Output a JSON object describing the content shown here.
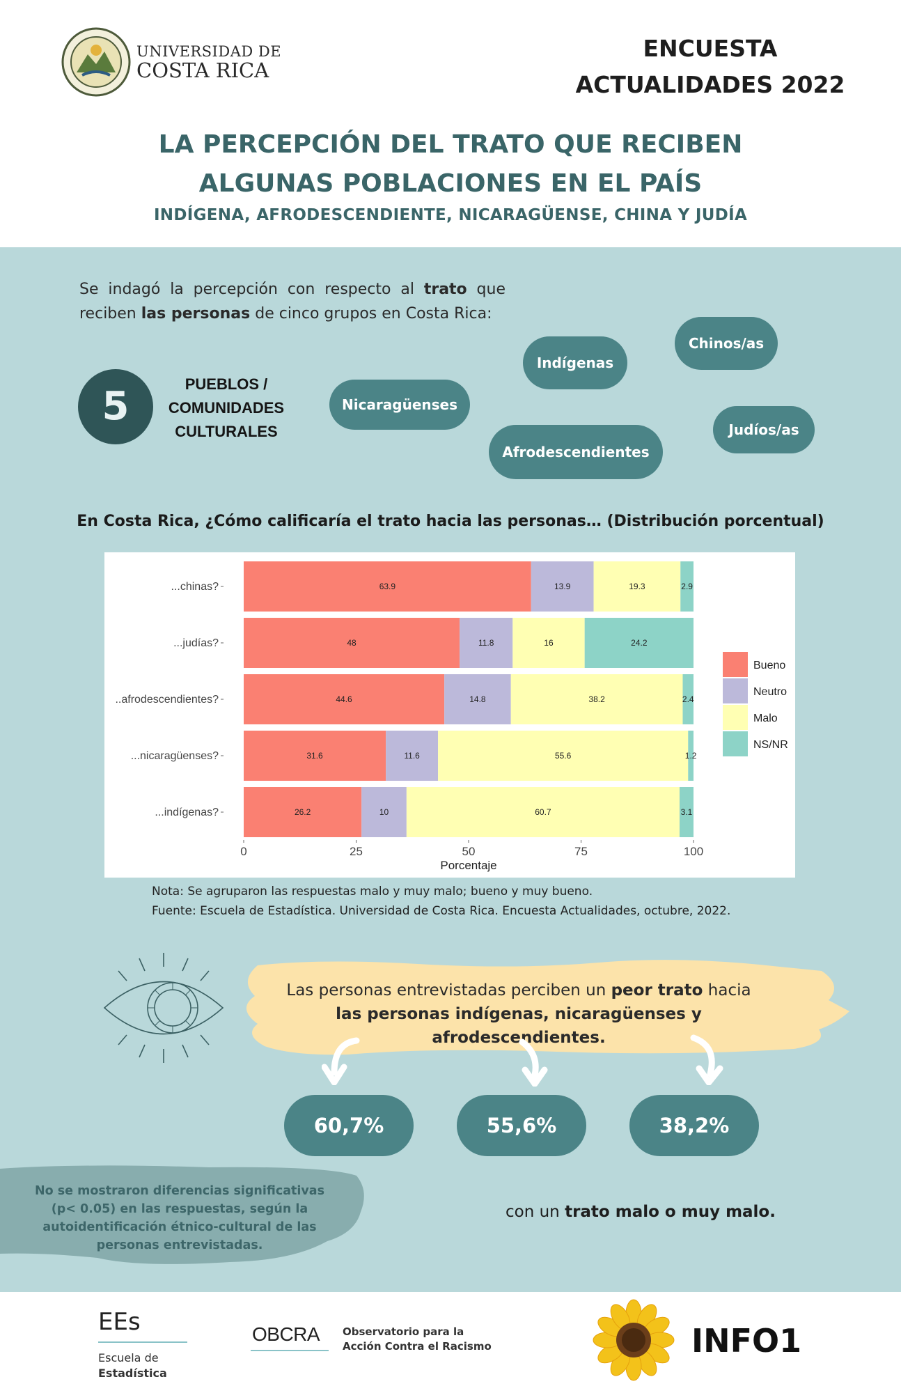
{
  "header": {
    "university_line1": "UNIVERSIDAD DE",
    "university_line2": "COSTA RICA",
    "survey_title_line1": "ENCUESTA",
    "survey_title_line2": "ACTUALIDADES 2022",
    "main_title_line1": "LA PERCEPCIÓN DEL TRATO QUE RECIBEN",
    "main_title_line2": "ALGUNAS POBLACIONES EN EL PAÍS",
    "subtitle": "INDÍGENA, AFRODESCENDIENTE, NICARAGÜENSE, CHINA Y JUDÍA"
  },
  "intro": {
    "part1": "Se indagó la percepción con respecto al ",
    "bold1": "trato",
    "part2": " que reciben ",
    "bold2": "las personas",
    "part3": " de cinco grupos en Costa Rica:"
  },
  "groups": {
    "count": "5",
    "label_line1": "PUEBLOS /",
    "label_line2": "COMUNIDADES",
    "label_line3": "CULTURALES",
    "items": [
      "Nicaragüenses",
      "Indígenas",
      "Chinos/as",
      "Afrodescendientes",
      "Judíos/as"
    ]
  },
  "chart_title": "En Costa Rica, ¿Cómo calificaría el trato hacia las personas… (Distribución porcentual)",
  "chart_data": {
    "type": "bar",
    "orientation": "horizontal",
    "stacked": true,
    "categories": [
      "...chinas?",
      "...judías?",
      "..afrodescendientes?",
      "...nicaragüenses?",
      "...indígenas?"
    ],
    "series": [
      {
        "name": "Bueno",
        "color": "#fa8072",
        "values": [
          63.9,
          48,
          44.6,
          31.6,
          26.2
        ]
      },
      {
        "name": "Neutro",
        "color": "#bcb9da",
        "values": [
          13.9,
          11.8,
          14.8,
          11.6,
          10
        ]
      },
      {
        "name": "Malo",
        "color": "#ffffb3",
        "values": [
          19.3,
          16,
          38.2,
          55.6,
          60.7
        ]
      },
      {
        "name": "NS/NR",
        "color": "#8dd3c7",
        "values": [
          2.9,
          24.2,
          2.4,
          1.2,
          3.1
        ]
      }
    ],
    "xlabel": "Porcentaje",
    "xlim": [
      0,
      100
    ],
    "xticks": [
      0,
      25,
      50,
      75,
      100
    ],
    "legend_position": "right",
    "grid": false
  },
  "note": {
    "line1": "Nota: Se agruparon las respuestas malo y muy malo; bueno y muy bueno.",
    "line2": "Fuente: Escuela de Estadística. Universidad de Costa Rica. Encuesta Actualidades, octubre, 2022."
  },
  "highlight": {
    "part1": "Las personas entrevistadas perciben un ",
    "bold1": "peor trato",
    "part2": " hacia",
    "bold2": "las personas indígenas, nicaragüenses y afrodescendientes."
  },
  "stats": [
    "60,7%",
    "55,6%",
    "38,2%"
  ],
  "no_difference": "No se mostraron diferencias significativas (p< 0.05) en las respuestas, según la autoidentificación étnico-cultural de las personas entrevistadas.",
  "conclusion": {
    "part1": "con un ",
    "bold": "trato malo o muy malo."
  },
  "footer": {
    "ees_short": "EEs",
    "ees_line1": "Escuela de",
    "ees_line2": "Estadística",
    "obcra_short": "OBCRA",
    "obcra_line1": "Observatorio para la",
    "obcra_line2": "Acción Contra el Racismo",
    "info_label": "INFO1"
  },
  "colors": {
    "teal_dark": "#3a6568",
    "pill": "#4b8487",
    "background": "#b9d8da",
    "brush": "#fce3aa"
  }
}
